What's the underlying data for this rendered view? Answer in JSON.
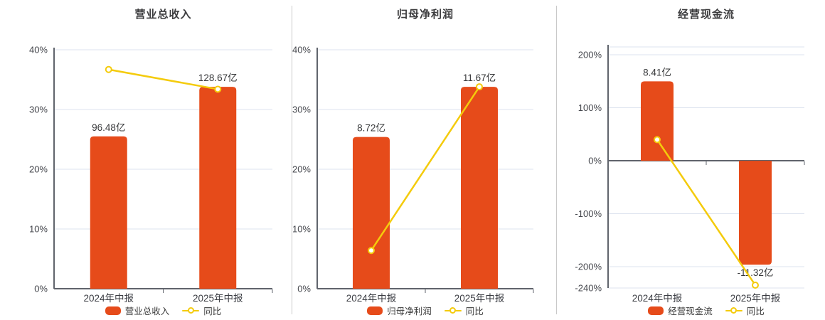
{
  "colors": {
    "bar": "#E64B1A",
    "line": "#F4CB0C",
    "grid": "#DDE3EF",
    "axis": "#60646C",
    "divider": "#C9C9C9",
    "title_text": "#3C3C3E",
    "label_text": "#37383A",
    "background": "#FFFFFF"
  },
  "chart_data": [
    {
      "type": "bar",
      "title": "营业总收入",
      "categories": [
        "2024年中报",
        "2025年中报"
      ],
      "legend_position": "bottom",
      "y_axis": {
        "tick_labels": [
          "40%",
          "30%",
          "20%",
          "10%",
          "0%"
        ],
        "tick_values": [
          40,
          30,
          20,
          10,
          0
        ],
        "range": [
          0,
          40
        ],
        "grid": true
      },
      "series": [
        {
          "name": "营业总收入",
          "kind": "bar",
          "unit": "亿",
          "values": [
            96.48,
            128.67
          ],
          "data_labels": [
            "96.48亿",
            "128.67亿"
          ],
          "display_pct": [
            25.5,
            33.8
          ]
        },
        {
          "name": "同比",
          "kind": "line",
          "unit": "%",
          "values": [
            36.7,
            33.4
          ]
        }
      ]
    },
    {
      "type": "bar",
      "title": "归母净利润",
      "categories": [
        "2024年中报",
        "2025年中报"
      ],
      "legend_position": "bottom",
      "y_axis": {
        "tick_labels": [
          "40%",
          "30%",
          "20%",
          "10%",
          "0%"
        ],
        "tick_values": [
          40,
          30,
          20,
          10,
          0
        ],
        "range": [
          0,
          40
        ],
        "grid": true
      },
      "series": [
        {
          "name": "归母净利润",
          "kind": "bar",
          "unit": "亿",
          "values": [
            8.72,
            11.67
          ],
          "data_labels": [
            "8.72亿",
            "11.67亿"
          ],
          "display_pct": [
            25.4,
            33.8
          ]
        },
        {
          "name": "同比",
          "kind": "line",
          "unit": "%",
          "values": [
            6.4,
            33.8
          ]
        }
      ]
    },
    {
      "type": "bar",
      "title": "经营现金流",
      "categories": [
        "2024年中报",
        "2025年中报"
      ],
      "legend_position": "bottom",
      "y_axis": {
        "tick_labels": [
          "200%",
          "100%",
          "0%",
          "-100%",
          "-200%",
          "-240%"
        ],
        "tick_values": [
          200,
          100,
          0,
          -100,
          -200,
          -240
        ],
        "range": [
          -240,
          215
        ],
        "grid": true
      },
      "series": [
        {
          "name": "经营现金流",
          "kind": "bar",
          "unit": "亿",
          "values": [
            8.41,
            -11.32
          ],
          "data_labels": [
            "8.41亿",
            "-11.32亿"
          ],
          "display_pct": [
            150,
            -196
          ]
        },
        {
          "name": "同比",
          "kind": "line",
          "unit": "%",
          "values": [
            40,
            -234.6
          ]
        }
      ]
    }
  ]
}
